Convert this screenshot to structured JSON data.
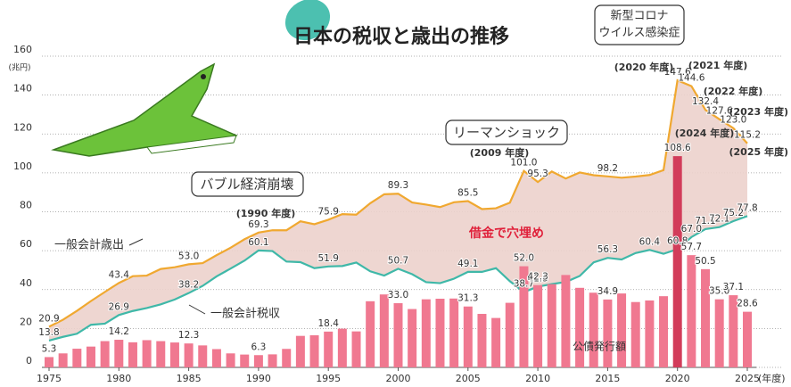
{
  "chart_data": {
    "type": "combo",
    "title": "日本の税収と歳出の推移",
    "y_unit": "(兆円)",
    "x_unit": "(年度)",
    "x": [
      1975,
      1976,
      1977,
      1978,
      1979,
      1980,
      1981,
      1982,
      1983,
      1984,
      1985,
      1986,
      1987,
      1988,
      1989,
      1990,
      1991,
      1992,
      1993,
      1994,
      1995,
      1996,
      1997,
      1998,
      1999,
      2000,
      2001,
      2002,
      2003,
      2004,
      2005,
      2006,
      2007,
      2008,
      2009,
      2010,
      2011,
      2012,
      2013,
      2014,
      2015,
      2016,
      2017,
      2018,
      2019,
      2020,
      2021,
      2022,
      2023,
      2024,
      2025
    ],
    "xlim": [
      1975,
      2025
    ],
    "xticks": [
      1975,
      1980,
      1985,
      1990,
      1995,
      2000,
      2005,
      2010,
      2015,
      2020,
      2025
    ],
    "ylim": [
      0,
      160
    ],
    "yticks": [
      0,
      20,
      40,
      60,
      80,
      100,
      120,
      140,
      160
    ],
    "grid": true,
    "series": [
      {
        "name": "一般会計歳出",
        "type": "line",
        "color": "#f0a830",
        "values": [
          20.9,
          24.5,
          29.1,
          34.1,
          38.8,
          43.4,
          46.9,
          47.2,
          50.6,
          51.5,
          53.0,
          53.6,
          57.7,
          61.5,
          65.9,
          69.3,
          70.5,
          70.5,
          75.1,
          73.6,
          75.9,
          78.8,
          78.5,
          84.4,
          89.0,
          89.3,
          84.8,
          83.7,
          82.4,
          84.9,
          85.5,
          81.4,
          81.8,
          84.7,
          101.0,
          95.3,
          100.7,
          97.1,
          100.2,
          98.8,
          98.2,
          97.5,
          98.1,
          98.9,
          101.4,
          147.6,
          144.6,
          132.4,
          127.6,
          123.0,
          115.2
        ],
        "value_labels": [
          "20.9",
          null,
          null,
          null,
          null,
          "43.4",
          null,
          null,
          null,
          null,
          "53.0",
          null,
          null,
          null,
          null,
          "69.3",
          null,
          null,
          null,
          null,
          "75.9",
          null,
          null,
          null,
          null,
          "89.3",
          null,
          null,
          null,
          null,
          "85.5",
          null,
          null,
          null,
          "101.0",
          "95.3",
          null,
          null,
          null,
          null,
          "98.2",
          null,
          null,
          null,
          null,
          "147.6",
          "144.6",
          "132.4",
          "127.6",
          "123.0",
          "115.2"
        ]
      },
      {
        "name": "一般会計税収",
        "type": "line",
        "color": "#3fb8a8",
        "values": [
          13.8,
          15.7,
          17.3,
          21.9,
          22.5,
          26.9,
          29.0,
          30.5,
          32.4,
          34.9,
          38.2,
          41.9,
          46.8,
          50.8,
          54.9,
          60.1,
          59.8,
          54.4,
          54.1,
          51.0,
          51.9,
          52.1,
          53.9,
          49.4,
          47.2,
          50.7,
          47.9,
          43.8,
          43.3,
          45.6,
          49.1,
          49.1,
          51.0,
          44.3,
          38.7,
          41.5,
          42.8,
          43.9,
          47.0,
          54.0,
          56.3,
          55.5,
          58.8,
          60.4,
          58.4,
          60.8,
          67.0,
          71.1,
          72.1,
          75.2,
          77.8
        ],
        "value_labels": [
          "13.8",
          null,
          null,
          null,
          null,
          "26.9",
          null,
          null,
          null,
          null,
          "38.2",
          null,
          null,
          null,
          null,
          "60.1",
          null,
          null,
          null,
          null,
          "51.9",
          null,
          null,
          null,
          null,
          "50.7",
          null,
          null,
          null,
          null,
          "49.1",
          null,
          null,
          null,
          "38.7",
          "41.5",
          null,
          null,
          null,
          null,
          "56.3",
          null,
          null,
          "60.4",
          null,
          "60.8",
          "67.0",
          "71.1",
          "72.1",
          "75.2",
          "77.8"
        ]
      },
      {
        "name": "公債発行額",
        "type": "bar",
        "color": "#f07890",
        "highlight_color": "#d23c5a",
        "values": [
          5.3,
          7.2,
          9.6,
          10.7,
          13.5,
          14.2,
          12.9,
          14.0,
          13.5,
          12.8,
          12.3,
          11.3,
          9.4,
          7.2,
          6.6,
          6.3,
          6.7,
          9.5,
          16.2,
          16.5,
          18.4,
          19.9,
          18.5,
          34.0,
          37.5,
          33.0,
          30.0,
          35.0,
          35.3,
          35.4,
          31.3,
          27.5,
          25.4,
          33.2,
          52.0,
          42.3,
          42.8,
          47.5,
          40.9,
          38.4,
          34.9,
          38.0,
          33.6,
          34.4,
          36.6,
          108.6,
          57.7,
          50.5,
          35.0,
          37.1,
          28.6
        ],
        "value_labels": [
          "5.3",
          null,
          null,
          null,
          null,
          "14.2",
          null,
          null,
          null,
          null,
          "12.3",
          null,
          null,
          null,
          null,
          "6.3",
          null,
          null,
          null,
          null,
          "18.4",
          null,
          null,
          null,
          null,
          "33.0",
          null,
          null,
          null,
          null,
          "31.3",
          null,
          null,
          null,
          "52.0",
          "42.3",
          null,
          null,
          null,
          null,
          "34.9",
          null,
          null,
          null,
          null,
          "108.6",
          "57.7",
          "50.5",
          "35.0",
          "37.1",
          "28.6"
        ]
      }
    ],
    "annotations": [
      "(1990 年度)",
      "(2009 年度)",
      "(2020 年度)",
      "(2021 年度)",
      "(2022 年度)",
      "(2023 年度)",
      "(2024 年度)",
      "(2025 年度)",
      "バブル経済崩壊",
      "リーマンショック",
      "新型コロナ",
      "ウイルス感染症",
      "一般会計歳出",
      "一般会計税収",
      "借金で穴埋め",
      "公債発行額"
    ]
  }
}
